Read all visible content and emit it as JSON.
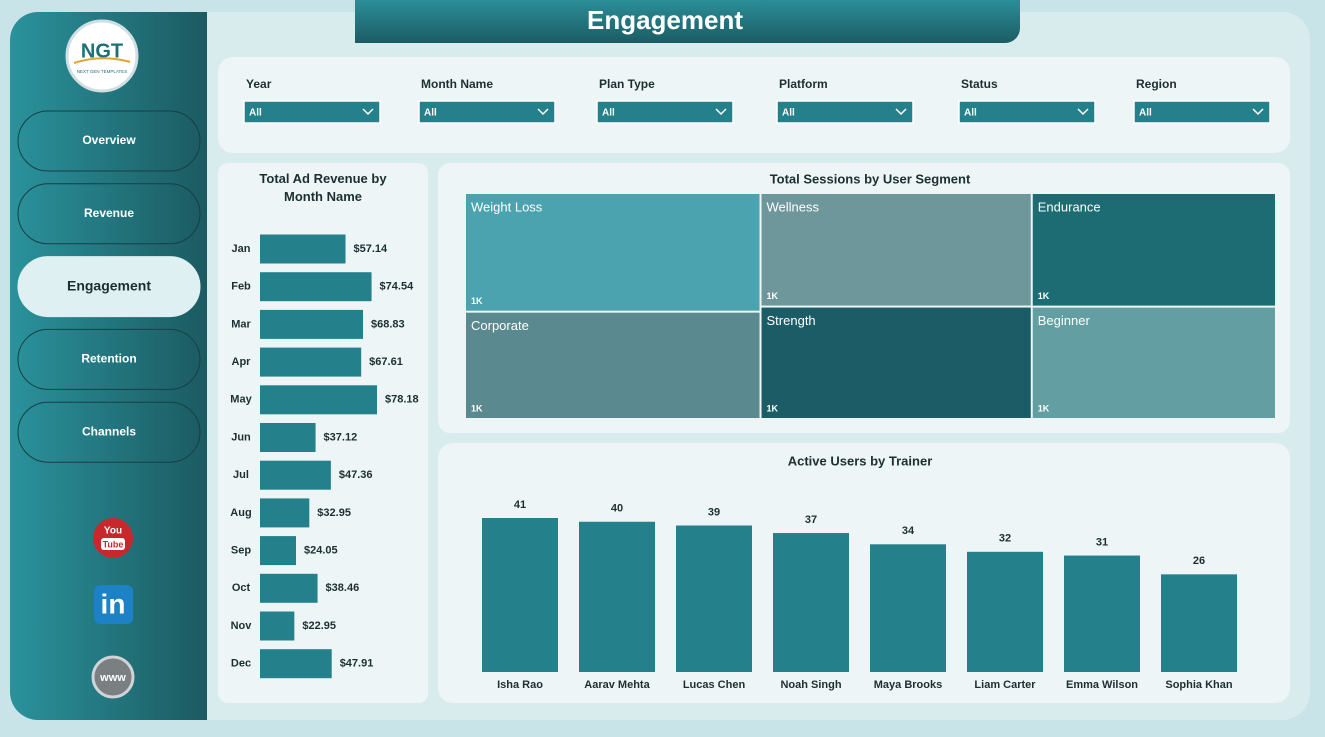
{
  "header": {
    "title": "Engagement"
  },
  "logo": {
    "text": "NGT",
    "tagline": "NEXT GEN TEMPLATES"
  },
  "nav": {
    "items": [
      "Overview",
      "Revenue",
      "Engagement",
      "Retention",
      "Channels"
    ],
    "active": 2
  },
  "social": {
    "youtube": [
      "You",
      "Tube"
    ],
    "linkedin": "in",
    "web": "www"
  },
  "filters": [
    {
      "label": "Year",
      "value": "All"
    },
    {
      "label": "Month Name",
      "value": "All"
    },
    {
      "label": "Plan Type",
      "value": "All"
    },
    {
      "label": "Platform",
      "value": "All"
    },
    {
      "label": "Status",
      "value": "All"
    },
    {
      "label": "Region",
      "value": "All"
    }
  ],
  "chart_data": [
    {
      "type": "bar",
      "orientation": "horizontal",
      "title": "Total Ad Revenue by Month Name",
      "color": "#24818b",
      "categories": [
        "Jan",
        "Feb",
        "Mar",
        "Apr",
        "May",
        "Jun",
        "Jul",
        "Aug",
        "Sep",
        "Oct",
        "Nov",
        "Dec"
      ],
      "values": [
        57.14,
        74.54,
        68.83,
        67.61,
        78.18,
        37.12,
        47.36,
        32.95,
        24.05,
        38.46,
        22.95,
        47.91
      ],
      "value_labels": [
        "$57.14",
        "$74.54",
        "$68.83",
        "$67.61",
        "$78.18",
        "$37.12",
        "$47.36",
        "$32.95",
        "$24.05",
        "$38.46",
        "$22.95",
        "$47.91"
      ]
    },
    {
      "type": "treemap",
      "title": "Total Sessions by User Segment",
      "categories": [
        "Weight Loss",
        "Corporate",
        "Wellness",
        "Strength",
        "Endurance",
        "Beginner"
      ],
      "values": [
        1150,
        1040,
        1010,
        1000,
        910,
        900
      ],
      "value_labels": [
        "1K",
        "1K",
        "1K",
        "1K",
        "1K",
        "1K"
      ],
      "colors": [
        "#4aa3af",
        "#5a8a8f",
        "#6e979c",
        "#1b5c66",
        "#1e6c73",
        "#639ea3"
      ]
    },
    {
      "type": "bar",
      "orientation": "vertical",
      "title": "Active Users by Trainer",
      "color": "#24818b",
      "categories": [
        "Isha Rao",
        "Aarav Mehta",
        "Lucas Chen",
        "Noah Singh",
        "Maya Brooks",
        "Liam Carter",
        "Emma Wilson",
        "Sophia Khan"
      ],
      "values": [
        41,
        40,
        39,
        37,
        34,
        32,
        31,
        26
      ]
    }
  ]
}
